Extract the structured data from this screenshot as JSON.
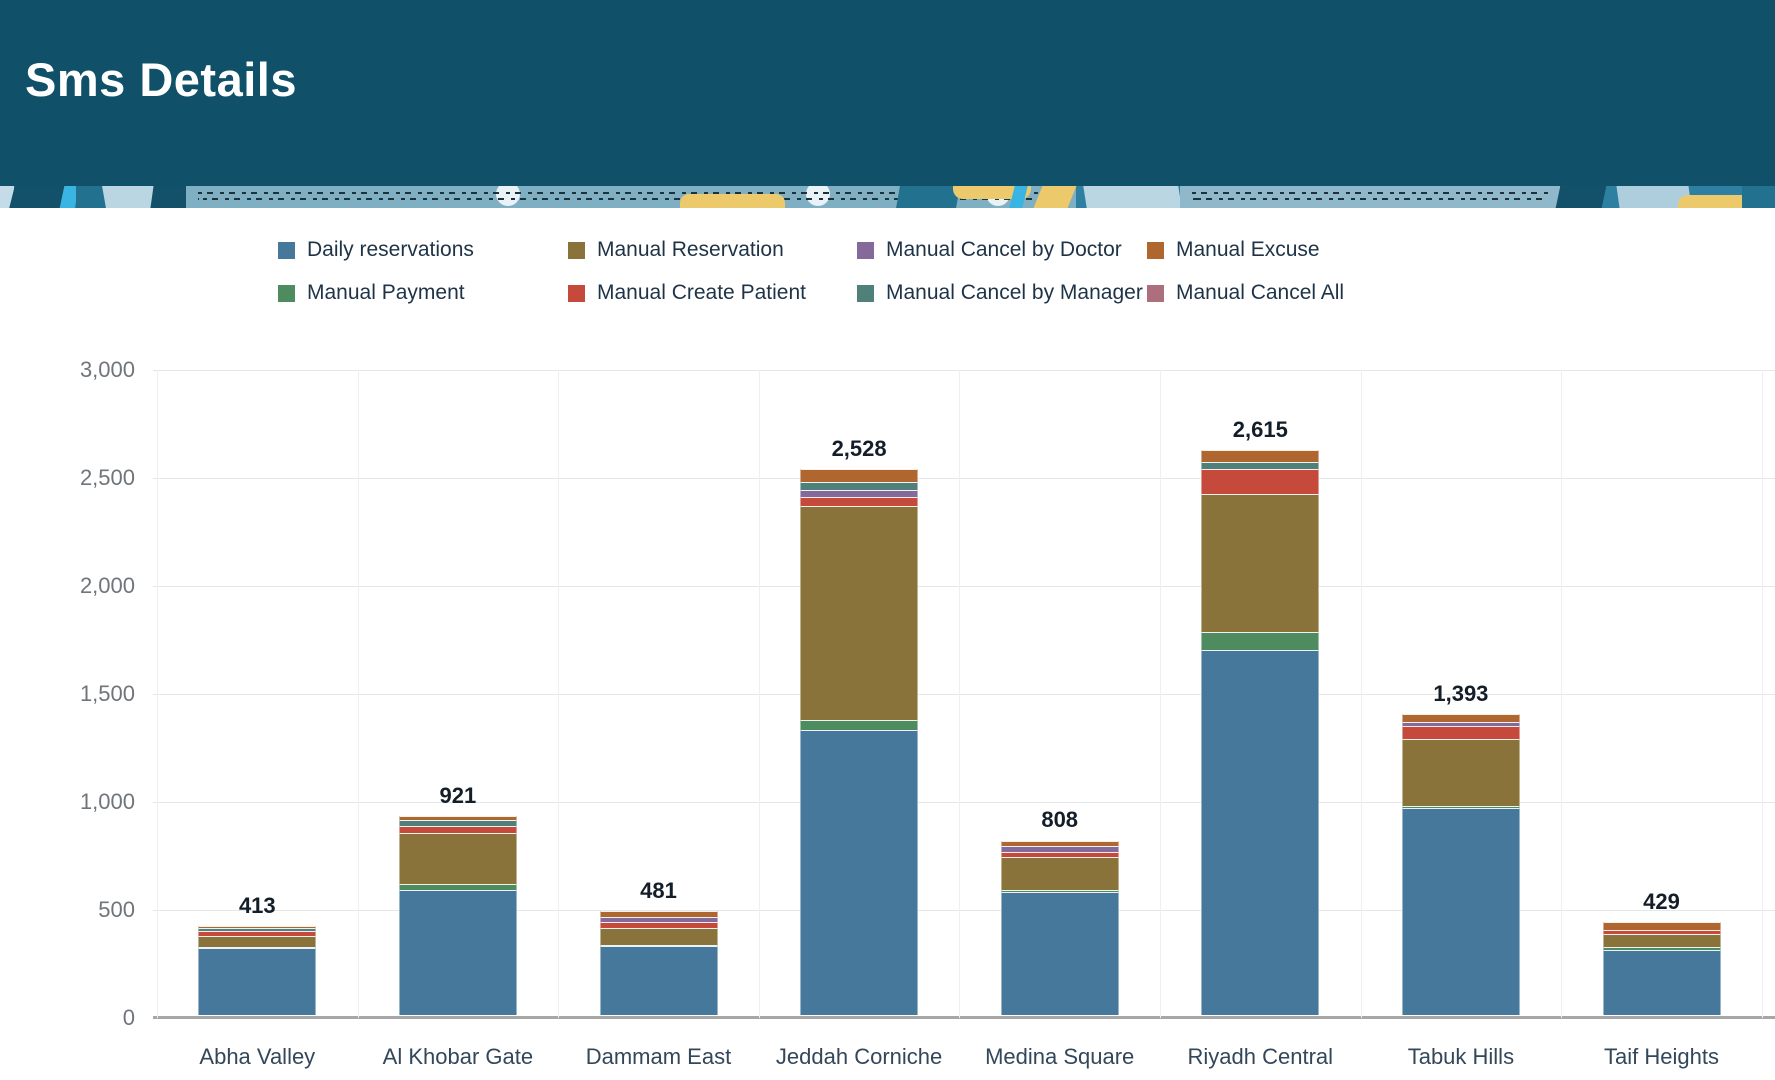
{
  "header": {
    "title": "Sms Details"
  },
  "chart_data": {
    "type": "bar",
    "variant": "stacked",
    "title": "Sms Details",
    "xlabel": "",
    "ylabel": "",
    "ylim": [
      0,
      3000
    ],
    "yticks": [
      0,
      500,
      1000,
      1500,
      2000,
      2500,
      3000
    ],
    "grid": true,
    "legend_position": "top",
    "categories": [
      "Abha Valley",
      "Al Khobar Gate",
      "Dammam East",
      "Jeddah Corniche",
      "Medina Square",
      "Riyadh Central",
      "Tabuk Hills",
      "Taif Heights"
    ],
    "totals": [
      413,
      921,
      481,
      2528,
      808,
      2615,
      1393,
      429
    ],
    "series": [
      {
        "key": "daily_reservations",
        "name": "Daily reservations",
        "color": "#45789A",
        "values": [
          308,
          580,
          318,
          1320,
          570,
          1690,
          958,
          303
        ]
      },
      {
        "key": "manual_payment",
        "name": "Manual Payment",
        "color": "#4E8B5E",
        "values": [
          5,
          25,
          8,
          45,
          8,
          84,
          10,
          14
        ]
      },
      {
        "key": "manual_reservation",
        "name": "Manual Reservation",
        "color": "#8A733A",
        "values": [
          54,
          238,
          76,
          990,
          152,
          640,
          312,
          60
        ]
      },
      {
        "key": "manual_create_patient",
        "name": "Manual Create Patient",
        "color": "#C54A3C",
        "values": [
          24,
          32,
          30,
          45,
          27,
          114,
          56,
          19
        ]
      },
      {
        "key": "manual_cancel_by_doctor",
        "name": "Manual Cancel by Doctor",
        "color": "#84699B",
        "values": [
          0,
          0,
          22,
          30,
          24,
          0,
          20,
          0
        ]
      },
      {
        "key": "manual_cancel_by_manager",
        "name": "Manual Cancel by Manager",
        "color": "#4F817A",
        "values": [
          10,
          30,
          0,
          38,
          0,
          33,
          0,
          0
        ]
      },
      {
        "key": "manual_excuse",
        "name": "Manual Excuse",
        "color": "#B0662F",
        "values": [
          12,
          16,
          27,
          60,
          27,
          54,
          37,
          33
        ]
      },
      {
        "key": "manual_cancel_all",
        "name": "Manual Cancel All",
        "color": "#AD6F7E",
        "values": [
          0,
          0,
          0,
          0,
          0,
          0,
          0,
          0
        ]
      }
    ],
    "legend_order": [
      "daily_reservations",
      "manual_reservation",
      "manual_cancel_by_doctor",
      "manual_excuse",
      "manual_payment",
      "manual_create_patient",
      "manual_cancel_by_manager",
      "manual_cancel_all"
    ]
  }
}
